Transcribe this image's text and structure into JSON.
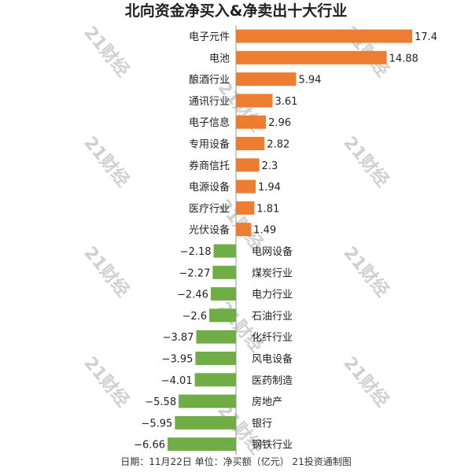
{
  "title": "北向资金净买入&净卖出十大行业",
  "footer": "日期：11月22日 单位：净买额（亿元） 21投资通制图",
  "watermark": "21财经",
  "colors": {
    "positive": "#ed7d31",
    "negative": "#70ad47"
  },
  "chart_data": {
    "type": "bar",
    "orientation": "horizontal",
    "title": "北向资金净买入&净卖出十大行业",
    "categories": [
      "电子元件",
      "电池",
      "酿酒行业",
      "通讯行业",
      "电子信息",
      "专用设备",
      "券商信托",
      "电源设备",
      "医疗行业",
      "光伏设备",
      "电网设备",
      "煤炭行业",
      "电力行业",
      "石油行业",
      "化纤行业",
      "风电设备",
      "医药制造",
      "房地产",
      "银行",
      "钢铁行业"
    ],
    "values": [
      17.4,
      14.88,
      5.94,
      3.61,
      2.96,
      2.82,
      2.3,
      1.94,
      1.81,
      1.49,
      -2.18,
      -2.27,
      -2.46,
      -2.6,
      -3.87,
      -3.95,
      -4.01,
      -5.58,
      -5.95,
      -6.66
    ],
    "value_labels": [
      "17.4",
      "14.88",
      "5.94",
      "3.61",
      "2.96",
      "2.82",
      "2.3",
      "1.94",
      "1.81",
      "1.49",
      "−2.18",
      "−2.27",
      "−2.46",
      "−2.6",
      "−3.87",
      "−3.95",
      "−4.01",
      "−5.58",
      "−5.95",
      "−6.66"
    ],
    "xlim": [
      -6.66,
      17.4
    ],
    "grid": false
  }
}
